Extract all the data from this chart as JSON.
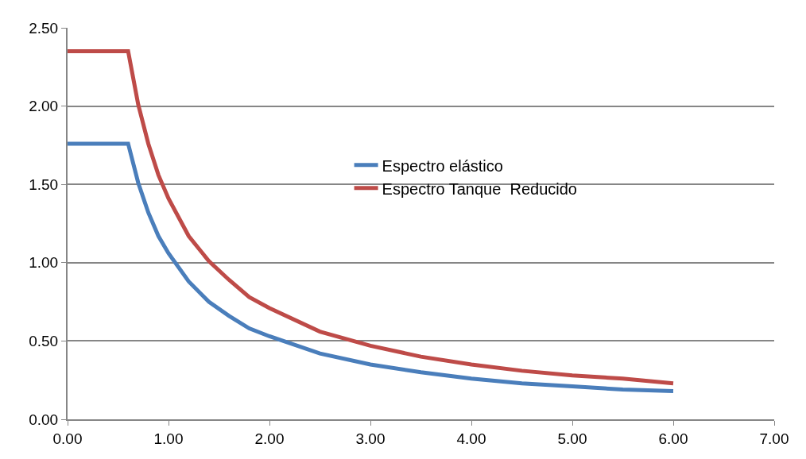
{
  "chart_data": {
    "type": "line",
    "x": [
      0,
      0.6,
      0.7,
      0.8,
      0.9,
      1.0,
      1.2,
      1.4,
      1.6,
      1.8,
      2.0,
      2.5,
      3.0,
      3.5,
      4.0,
      4.5,
      5.0,
      5.5,
      6.0
    ],
    "series": [
      {
        "name": "Espectro elástico",
        "color": "#4a7ebb",
        "values": [
          1.76,
          1.76,
          1.51,
          1.32,
          1.17,
          1.06,
          0.88,
          0.75,
          0.66,
          0.58,
          0.53,
          0.42,
          0.35,
          0.3,
          0.26,
          0.23,
          0.21,
          0.19,
          0.18
        ]
      },
      {
        "name": "Espectro Tanque  Reducido",
        "color": "#be4b48",
        "values": [
          2.35,
          2.35,
          2.01,
          1.76,
          1.56,
          1.41,
          1.17,
          1.01,
          0.89,
          0.78,
          0.71,
          0.56,
          0.47,
          0.4,
          0.35,
          0.31,
          0.28,
          0.26,
          0.23
        ]
      }
    ],
    "xlim": [
      0,
      7
    ],
    "xticks": [
      {
        "value": 0,
        "label": "0.00"
      },
      {
        "value": 1,
        "label": "1.00"
      },
      {
        "value": 2,
        "label": "2.00"
      },
      {
        "value": 3,
        "label": "3.00"
      },
      {
        "value": 4,
        "label": "4.00"
      },
      {
        "value": 5,
        "label": "5.00"
      },
      {
        "value": 6,
        "label": "6.00"
      },
      {
        "value": 7,
        "label": "7.00"
      }
    ],
    "ylim": [
      0,
      2.5
    ],
    "yticks": [
      {
        "value": 0,
        "label": "0.00"
      },
      {
        "value": 0.5,
        "label": "0.50"
      },
      {
        "value": 1,
        "label": "1.00"
      },
      {
        "value": 1.5,
        "label": "1.50"
      },
      {
        "value": 2,
        "label": "2.00"
      },
      {
        "value": 2.5,
        "label": "2.50"
      }
    ],
    "grid": "y",
    "legend": "center right",
    "marker": "none",
    "line_style": "solid"
  }
}
